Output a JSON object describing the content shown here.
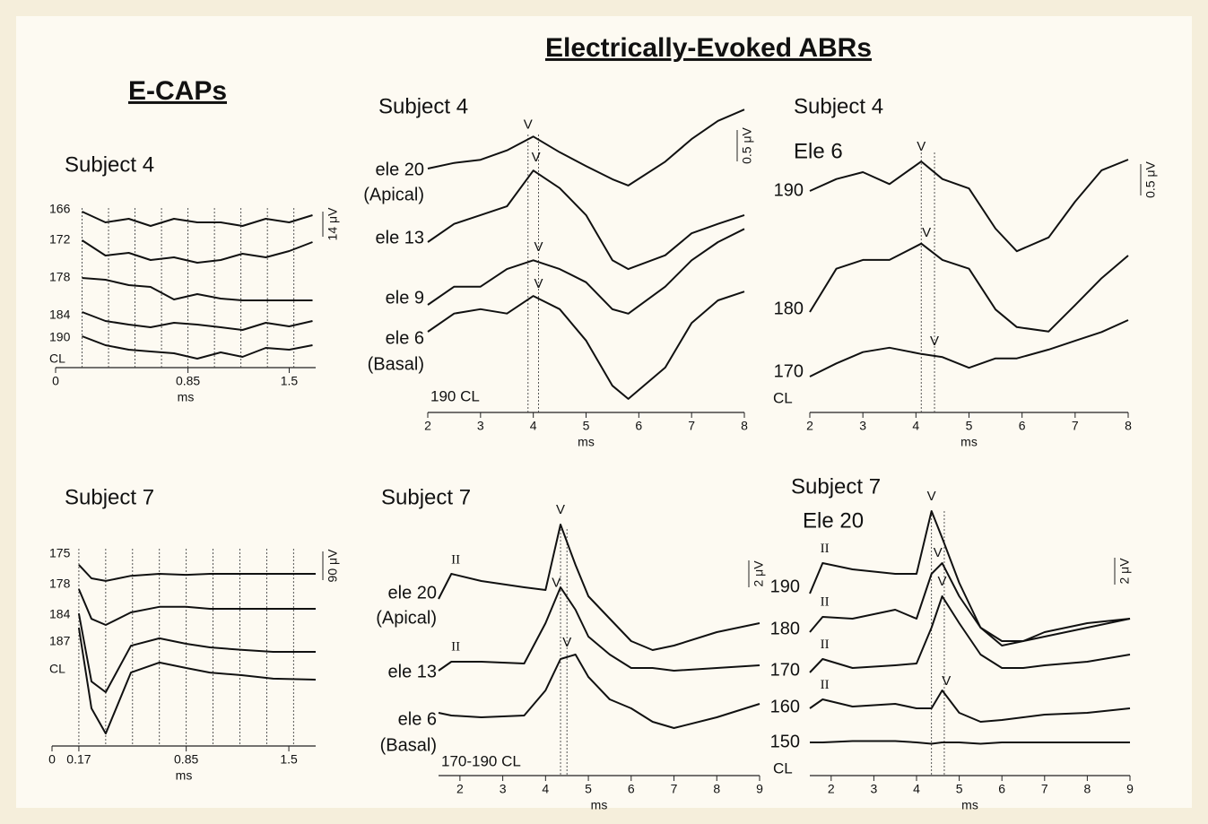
{
  "header": {
    "title": "Electrically-Evoked ABRs",
    "left_title": "E-CAPs"
  },
  "chart_data": [
    {
      "type": "line",
      "title": "Subject 4",
      "xlabel": "ms",
      "xlim": [
        0,
        1.67
      ],
      "xticks": [
        0,
        0.85,
        1.5
      ],
      "scale_bar": "14 μV",
      "note": "CL",
      "vlines": [
        0.17,
        0.34,
        0.51,
        0.68,
        0.85,
        1.02,
        1.19,
        1.36,
        1.53
      ],
      "x": [
        0.17,
        0.32,
        0.47,
        0.61,
        0.76,
        0.91,
        1.06,
        1.2,
        1.35,
        1.5,
        1.65
      ],
      "series": [
        {
          "name": "166",
          "values": [
            4,
            -2,
            0,
            -4,
            0,
            -2,
            -2,
            -4,
            0,
            -2,
            2
          ]
        },
        {
          "name": "172",
          "values": [
            8.5,
            0,
            1.5,
            -2.5,
            -1,
            -4,
            -2.5,
            1,
            -1,
            2.5,
            7.5
          ]
        },
        {
          "name": "178",
          "values": [
            7.5,
            6.5,
            3.5,
            2.5,
            -4.5,
            -1.5,
            -4,
            -5,
            -5,
            -5,
            -5
          ]
        },
        {
          "name": "184",
          "values": [
            7,
            2,
            0,
            -1.5,
            1,
            0,
            -1.5,
            -3,
            1,
            -1,
            2
          ]
        },
        {
          "name": "190",
          "values": [
            6.5,
            1.5,
            -1,
            -2,
            -3,
            -6,
            -2.5,
            -5,
            0,
            -1,
            1.5
          ]
        }
      ]
    },
    {
      "type": "line",
      "title": "Subject 7",
      "xlabel": "ms",
      "xlim": [
        0,
        1.67
      ],
      "xticks": [
        0,
        0.17,
        0.85,
        1.5
      ],
      "scale_bar": "90 μV",
      "note": "CL",
      "vlines": [
        0.17,
        0.34,
        0.51,
        0.68,
        0.85,
        1.02,
        1.19,
        1.36,
        1.53
      ],
      "x": [
        0.17,
        0.25,
        0.34,
        0.5,
        0.68,
        0.85,
        1.0,
        1.2,
        1.4,
        1.67
      ],
      "series": [
        {
          "name": "175",
          "values": [
            28,
            -14,
            -22,
            -6,
            0,
            -3,
            0,
            0,
            0,
            0
          ]
        },
        {
          "name": "178",
          "values": [
            61,
            -31,
            -50,
            -11,
            6,
            6,
            0,
            0,
            0,
            0
          ]
        },
        {
          "name": "184",
          "values": [
            119,
            -92,
            -125,
            19,
            42,
            25,
            14,
            6,
            0,
            0
          ]
        },
        {
          "name": "187",
          "values": [
            161,
            -89,
            -167,
            22,
            53,
            36,
            22,
            14,
            3,
            0
          ]
        }
      ]
    },
    {
      "type": "line",
      "title": "Subject 4",
      "xlabel": "ms",
      "xlim": [
        2,
        8
      ],
      "xticks": [
        2,
        3,
        4,
        5,
        6,
        7,
        8
      ],
      "scale_bar": "0.5 μV",
      "note": "190 CL",
      "vlines": [
        3.9,
        4.1
      ],
      "x": [
        2,
        2.5,
        3,
        3.5,
        4,
        4.5,
        5,
        5.5,
        5.8,
        6.5,
        7,
        7.5,
        8
      ],
      "series": [
        {
          "name": "ele 20",
          "sublabel": "(Apical)",
          "values": [
            0,
            0.09,
            0.14,
            0.29,
            0.51,
            0.26,
            0.04,
            -0.17,
            -0.27,
            0.11,
            0.47,
            0.76,
            0.94
          ],
          "peaks": [
            {
              "label": "V",
              "x": 3.9
            }
          ]
        },
        {
          "name": "ele 13",
          "values": [
            0,
            0.29,
            0.43,
            0.57,
            1.14,
            0.86,
            0.43,
            -0.29,
            -0.43,
            -0.21,
            0.14,
            0.29,
            0.43
          ],
          "peaks": [
            {
              "label": "V",
              "x": 4.05
            }
          ]
        },
        {
          "name": "ele 9",
          "values": [
            0,
            0.29,
            0.29,
            0.57,
            0.71,
            0.57,
            0.36,
            -0.07,
            -0.14,
            0.29,
            0.71,
            1.0,
            1.21
          ],
          "peaks": [
            {
              "label": "V",
              "x": 4.1
            }
          ]
        },
        {
          "name": "ele 6",
          "sublabel": "(Basal)",
          "values": [
            0,
            0.29,
            0.36,
            0.29,
            0.57,
            0.36,
            -0.14,
            -0.86,
            -1.07,
            -0.57,
            0.14,
            0.5,
            0.64
          ],
          "peaks": [
            {
              "label": "V",
              "x": 4.1
            }
          ]
        }
      ]
    },
    {
      "type": "line",
      "title": "Subject 4",
      "subtitle": "Ele 6",
      "xlabel": "ms",
      "xlim": [
        2,
        8
      ],
      "xticks": [
        2,
        3,
        4,
        5,
        6,
        7,
        8
      ],
      "scale_bar": "0.5 μV",
      "note": "CL",
      "vlines": [
        4.1,
        4.35
      ],
      "x": [
        2,
        2.5,
        3,
        3.5,
        4.1,
        4.5,
        5,
        5.5,
        5.9,
        6.5,
        7,
        7.5,
        8
      ],
      "series": [
        {
          "name": "190",
          "values": [
            0,
            0.19,
            0.3,
            0.11,
            0.47,
            0.19,
            0.04,
            -0.6,
            -0.96,
            -0.74,
            -0.17,
            0.33,
            0.5
          ],
          "peaks": [
            {
              "label": "V",
              "x": 4.1
            }
          ]
        },
        {
          "name": "180",
          "values": [
            0,
            0.69,
            0.83,
            0.83,
            1.09,
            0.83,
            0.69,
            0.04,
            -0.24,
            -0.31,
            0.11,
            0.54,
            0.9
          ],
          "peaks": [
            {
              "label": "V",
              "x": 4.2
            }
          ]
        },
        {
          "name": "170",
          "values": [
            0,
            0.21,
            0.39,
            0.46,
            0.36,
            0.31,
            0.14,
            0.29,
            0.29,
            0.43,
            0.57,
            0.71,
            0.9
          ],
          "peaks": [
            {
              "label": "V",
              "x": 4.35
            }
          ]
        }
      ]
    },
    {
      "type": "line",
      "title": "Subject 7",
      "xlabel": "ms",
      "xlim": [
        1.5,
        9
      ],
      "xticks": [
        2,
        3,
        4,
        5,
        6,
        7,
        8,
        9
      ],
      "scale_bar": "2 μV",
      "note": "170-190 CL",
      "vlines": [
        4.35,
        4.5
      ],
      "x": [
        1.5,
        1.8,
        2.5,
        3.5,
        4,
        4.35,
        4.7,
        5,
        5.5,
        6,
        6.5,
        7,
        8,
        9
      ],
      "series": [
        {
          "name": "ele 20",
          "sublabel": "(Apical)",
          "values": [
            0,
            1.87,
            1.33,
            0.87,
            0.67,
            5.53,
            2.53,
            0.2,
            -1.47,
            -3.13,
            -3.8,
            -3.47,
            -2.47,
            -1.8
          ],
          "peaks": [
            {
              "label": "II",
              "x": 1.9
            },
            {
              "label": "V",
              "x": 4.35
            }
          ]
        },
        {
          "name": "ele 13",
          "values": [
            0,
            0.67,
            0.67,
            0.53,
            3.53,
            6.2,
            4.53,
            2.53,
            1.2,
            0.2,
            0.2,
            0,
            0.2,
            0.4
          ],
          "peaks": [
            {
              "label": "II",
              "x": 1.9
            },
            {
              "label": "V",
              "x": 4.25
            }
          ]
        },
        {
          "name": "ele 6",
          "sublabel": "(Basal)",
          "values": [
            0,
            -0.2,
            -0.33,
            -0.2,
            1.67,
            4,
            4.33,
            2.67,
            1,
            0.33,
            -0.67,
            -1.13,
            -0.33,
            0.67
          ],
          "peaks": [
            {
              "label": "V",
              "x": 4.5
            }
          ]
        }
      ]
    },
    {
      "type": "line",
      "title": "Subject 7",
      "subtitle": "Ele 20",
      "xlabel": "ms",
      "xlim": [
        1.5,
        9
      ],
      "xticks": [
        2,
        3,
        4,
        5,
        6,
        7,
        8,
        9
      ],
      "scale_bar": "2 μV",
      "note": "CL",
      "vlines": [
        4.35,
        4.65
      ],
      "x": [
        1.5,
        1.8,
        2.5,
        3.5,
        4,
        4.35,
        4.6,
        5,
        5.5,
        6,
        6.5,
        7,
        8,
        9
      ],
      "series": [
        {
          "name": "190",
          "values": [
            0,
            2.27,
            1.8,
            1.47,
            1.47,
            6.13,
            4.13,
            0.8,
            -2.53,
            -3.87,
            -3.53,
            -2.87,
            -2.2,
            -1.87
          ],
          "peaks": [
            {
              "label": "II",
              "x": 1.85
            },
            {
              "label": "V",
              "x": 4.35
            }
          ]
        },
        {
          "name": "180",
          "values": [
            0,
            1.13,
            1,
            1.67,
            1,
            4.33,
            5.13,
            2.67,
            0.33,
            -0.67,
            -0.67,
            -0.33,
            0.33,
            1
          ],
          "peaks": [
            {
              "label": "II",
              "x": 1.85
            },
            {
              "label": "V",
              "x": 4.5
            }
          ]
        },
        {
          "name": "170",
          "values": [
            0,
            1,
            0.33,
            0.53,
            0.67,
            3.33,
            5.67,
            3.67,
            1.33,
            0.33,
            0.33,
            0.53,
            0.8,
            1.33
          ],
          "peaks": [
            {
              "label": "II",
              "x": 1.85
            },
            {
              "label": "V",
              "x": 4.6
            }
          ]
        },
        {
          "name": "160",
          "values": [
            0,
            0.67,
            0.13,
            0.33,
            0,
            0,
            1.33,
            -0.33,
            -1,
            -0.87,
            -0.67,
            -0.47,
            -0.33,
            0
          ],
          "peaks": [
            {
              "label": "II",
              "x": 1.85
            },
            {
              "label": "V",
              "x": 4.7
            }
          ]
        },
        {
          "name": "150",
          "values": [
            0,
            0,
            0.1,
            0.1,
            0,
            -0.1,
            0,
            0,
            -0.1,
            0,
            0,
            0,
            0,
            0
          ]
        }
      ]
    }
  ]
}
